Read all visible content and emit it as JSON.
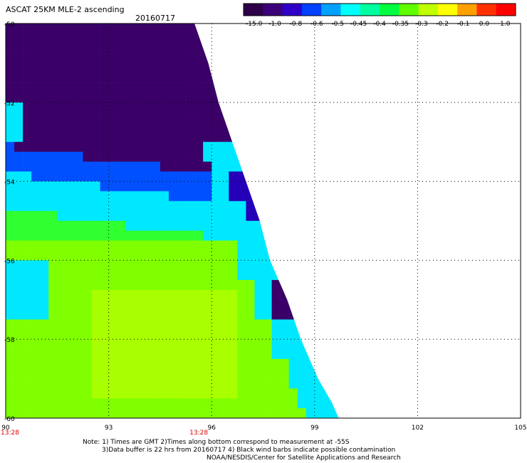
{
  "header": {
    "title": "ASCAT 25KM MLE-2 ascending",
    "date": "20160717"
  },
  "colorbar": {
    "labels": [
      "-15.0",
      "-1.0",
      "-0.8",
      "-0.6",
      "-0.5",
      "-0.45",
      "-0.4",
      "-0.35",
      "-0.3",
      "-0.2",
      "-0.1",
      "0.0",
      "1.0"
    ],
    "colors": [
      "#2d0049",
      "#3c0078",
      "#2e00c8",
      "#0040ff",
      "#00a0ff",
      "#00ffff",
      "#00ffa0",
      "#00ff40",
      "#60ff00",
      "#c0ff00",
      "#ffff00",
      "#ffa000",
      "#ff3000",
      "#ff0000"
    ]
  },
  "chart_data": {
    "type": "heatmap",
    "title": "ASCAT 25KM MLE-2 ascending",
    "xlim": [
      90,
      105
    ],
    "ylim": [
      -60,
      -50
    ],
    "x_ticks": [
      90,
      93,
      96,
      99,
      102,
      105
    ],
    "x_tick_labels": [
      "90",
      "93",
      "96",
      "99",
      "102",
      "105"
    ],
    "y_ticks": [
      -60,
      -58,
      -56,
      -54,
      -52,
      -50
    ],
    "y_tick_labels": [
      "-60",
      "-58",
      "-56",
      "-54",
      "-52",
      "-50"
    ],
    "time_labels": [
      {
        "x": 90,
        "label": "13:28"
      },
      {
        "x": 95.5,
        "label": "13:28"
      }
    ],
    "grid": true,
    "swath_east_edge": [
      {
        "lat": -50.0,
        "lon": 95.5
      },
      {
        "lat": -51.0,
        "lon": 95.9
      },
      {
        "lat": -52.0,
        "lon": 96.2
      },
      {
        "lat": -53.0,
        "lon": 96.6
      },
      {
        "lat": -54.0,
        "lon": 97.0
      },
      {
        "lat": -55.0,
        "lon": 97.4
      },
      {
        "lat": -56.0,
        "lon": 97.7
      },
      {
        "lat": -57.0,
        "lon": 98.2
      },
      {
        "lat": -58.0,
        "lon": 98.6
      },
      {
        "lat": -59.0,
        "lon": 99.1
      },
      {
        "lat": -59.6,
        "lon": 99.5
      },
      {
        "lat": -60.0,
        "lon": 99.7
      }
    ],
    "field_regions": [
      {
        "name": "dark purple",
        "value": -1.0,
        "lat_range": [
          -53.8,
          -50
        ],
        "lon_range": [
          90,
          95.5
        ]
      },
      {
        "name": "blue band",
        "value": -0.6,
        "lat_range": [
          -54.4,
          -52.8
        ],
        "lon_range": [
          90,
          96.5
        ]
      },
      {
        "name": "cyan band",
        "value": -0.45,
        "lat_range": [
          -55.6,
          -53.6
        ],
        "lon_range": [
          90,
          97.2
        ]
      },
      {
        "name": "green",
        "value": -0.3,
        "lat_range": [
          -60,
          -55
        ],
        "lon_range": [
          90,
          98.5
        ]
      },
      {
        "name": "yellow-green",
        "value": -0.2,
        "lat_range": [
          -59.6,
          -56.8
        ],
        "lon_range": [
          92.5,
          96.8
        ]
      }
    ]
  },
  "footer": {
    "line1": "Note: 1) Times are GMT 2)Times along bottom correspond to measurement at -55S",
    "line2": "3)Data buffer is 22 hrs from 20160717 4) Black wind barbs indicate possible contamination",
    "line3": "NOAA/NESDIS/Center for Satellite Applications and Research"
  }
}
